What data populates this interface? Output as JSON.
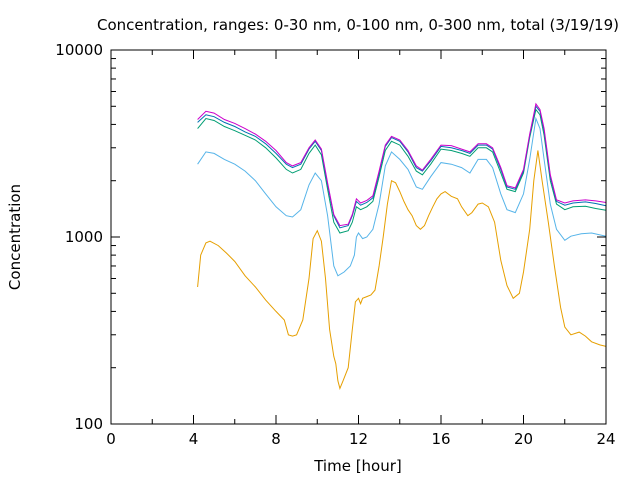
{
  "chart_data": {
    "type": "line",
    "title": "Concentration, ranges: 0-30 nm, 0-100 nm, 0-300 nm, total (3/19/19)",
    "xlabel": "Time [hour]",
    "ylabel": "Concentration",
    "xlim": [
      0,
      24
    ],
    "ylim": [
      100,
      10000
    ],
    "yscale": "log",
    "grid": false,
    "x_ticks": [
      "0",
      "4",
      "8",
      "12",
      "16",
      "20",
      "24"
    ],
    "y_ticks": [
      "100",
      "1000",
      "10000"
    ],
    "series": [
      {
        "color": "#e69f00",
        "points": [
          [
            4.2,
            540
          ],
          [
            4.35,
            800
          ],
          [
            4.6,
            930
          ],
          [
            4.8,
            950
          ],
          [
            5.2,
            900
          ],
          [
            5.6,
            820
          ],
          [
            6.0,
            740
          ],
          [
            6.5,
            620
          ],
          [
            7.0,
            540
          ],
          [
            7.5,
            460
          ],
          [
            8.0,
            400
          ],
          [
            8.4,
            360
          ],
          [
            8.6,
            300
          ],
          [
            8.8,
            295
          ],
          [
            9.0,
            300
          ],
          [
            9.3,
            360
          ],
          [
            9.6,
            600
          ],
          [
            9.8,
            980
          ],
          [
            10.0,
            1080
          ],
          [
            10.2,
            950
          ],
          [
            10.4,
            600
          ],
          [
            10.6,
            320
          ],
          [
            10.8,
            230
          ],
          [
            10.9,
            210
          ],
          [
            11.0,
            170
          ],
          [
            11.1,
            155
          ],
          [
            11.25,
            170
          ],
          [
            11.5,
            200
          ],
          [
            11.7,
            320
          ],
          [
            11.85,
            450
          ],
          [
            12.0,
            470
          ],
          [
            12.1,
            440
          ],
          [
            12.2,
            470
          ],
          [
            12.4,
            480
          ],
          [
            12.6,
            490
          ],
          [
            12.8,
            520
          ],
          [
            13.0,
            700
          ],
          [
            13.2,
            1000
          ],
          [
            13.4,
            1500
          ],
          [
            13.6,
            2000
          ],
          [
            13.8,
            1950
          ],
          [
            14.0,
            1750
          ],
          [
            14.2,
            1550
          ],
          [
            14.4,
            1400
          ],
          [
            14.6,
            1300
          ],
          [
            14.8,
            1150
          ],
          [
            15.0,
            1100
          ],
          [
            15.2,
            1150
          ],
          [
            15.4,
            1300
          ],
          [
            15.6,
            1450
          ],
          [
            15.8,
            1600
          ],
          [
            16.0,
            1700
          ],
          [
            16.2,
            1750
          ],
          [
            16.5,
            1650
          ],
          [
            16.8,
            1600
          ],
          [
            17.0,
            1450
          ],
          [
            17.3,
            1300
          ],
          [
            17.5,
            1350
          ],
          [
            17.8,
            1500
          ],
          [
            18.0,
            1520
          ],
          [
            18.3,
            1450
          ],
          [
            18.6,
            1200
          ],
          [
            18.9,
            750
          ],
          [
            19.2,
            550
          ],
          [
            19.5,
            470
          ],
          [
            19.8,
            500
          ],
          [
            20.0,
            650
          ],
          [
            20.3,
            1100
          ],
          [
            20.5,
            2000
          ],
          [
            20.7,
            2900
          ],
          [
            20.9,
            2000
          ],
          [
            21.2,
            1200
          ],
          [
            21.5,
            700
          ],
          [
            21.8,
            420
          ],
          [
            22.0,
            330
          ],
          [
            22.3,
            300
          ],
          [
            22.7,
            310
          ],
          [
            23.0,
            295
          ],
          [
            23.3,
            275
          ],
          [
            23.7,
            265
          ],
          [
            24.0,
            260
          ]
        ]
      },
      {
        "color": "#56b4e9",
        "points": [
          [
            4.2,
            2450
          ],
          [
            4.6,
            2850
          ],
          [
            5.0,
            2800
          ],
          [
            5.5,
            2600
          ],
          [
            6.0,
            2450
          ],
          [
            6.5,
            2250
          ],
          [
            7.0,
            2000
          ],
          [
            7.5,
            1700
          ],
          [
            8.0,
            1450
          ],
          [
            8.5,
            1300
          ],
          [
            8.8,
            1280
          ],
          [
            9.2,
            1400
          ],
          [
            9.6,
            1900
          ],
          [
            9.9,
            2200
          ],
          [
            10.2,
            2000
          ],
          [
            10.5,
            1300
          ],
          [
            10.8,
            700
          ],
          [
            11.0,
            620
          ],
          [
            11.3,
            650
          ],
          [
            11.6,
            700
          ],
          [
            11.8,
            800
          ],
          [
            11.9,
            1000
          ],
          [
            12.0,
            1050
          ],
          [
            12.2,
            980
          ],
          [
            12.4,
            1000
          ],
          [
            12.7,
            1100
          ],
          [
            13.0,
            1500
          ],
          [
            13.3,
            2400
          ],
          [
            13.6,
            2850
          ],
          [
            14.0,
            2600
          ],
          [
            14.4,
            2300
          ],
          [
            14.8,
            1850
          ],
          [
            15.1,
            1800
          ],
          [
            15.5,
            2100
          ],
          [
            16.0,
            2500
          ],
          [
            16.5,
            2450
          ],
          [
            17.0,
            2350
          ],
          [
            17.4,
            2200
          ],
          [
            17.8,
            2600
          ],
          [
            18.2,
            2600
          ],
          [
            18.5,
            2350
          ],
          [
            18.9,
            1700
          ],
          [
            19.2,
            1400
          ],
          [
            19.6,
            1350
          ],
          [
            20.0,
            1700
          ],
          [
            20.3,
            2600
          ],
          [
            20.6,
            4300
          ],
          [
            20.8,
            3800
          ],
          [
            21.0,
            2600
          ],
          [
            21.3,
            1500
          ],
          [
            21.6,
            1100
          ],
          [
            22.0,
            960
          ],
          [
            22.3,
            1010
          ],
          [
            22.8,
            1040
          ],
          [
            23.3,
            1050
          ],
          [
            24.0,
            1010
          ]
        ]
      },
      {
        "color": "#009e73",
        "points": [
          [
            4.2,
            3800
          ],
          [
            4.6,
            4300
          ],
          [
            5.0,
            4200
          ],
          [
            5.5,
            3900
          ],
          [
            6.0,
            3700
          ],
          [
            6.5,
            3500
          ],
          [
            7.0,
            3300
          ],
          [
            7.5,
            3000
          ],
          [
            8.0,
            2650
          ],
          [
            8.5,
            2300
          ],
          [
            8.8,
            2200
          ],
          [
            9.2,
            2300
          ],
          [
            9.6,
            2800
          ],
          [
            9.9,
            3100
          ],
          [
            10.2,
            2750
          ],
          [
            10.5,
            1800
          ],
          [
            10.8,
            1200
          ],
          [
            11.1,
            1050
          ],
          [
            11.5,
            1080
          ],
          [
            11.7,
            1200
          ],
          [
            11.9,
            1450
          ],
          [
            12.1,
            1400
          ],
          [
            12.4,
            1450
          ],
          [
            12.7,
            1550
          ],
          [
            13.0,
            2100
          ],
          [
            13.3,
            2900
          ],
          [
            13.6,
            3250
          ],
          [
            14.0,
            3100
          ],
          [
            14.4,
            2700
          ],
          [
            14.8,
            2250
          ],
          [
            15.1,
            2150
          ],
          [
            15.5,
            2450
          ],
          [
            16.0,
            2950
          ],
          [
            16.5,
            2900
          ],
          [
            17.0,
            2800
          ],
          [
            17.4,
            2700
          ],
          [
            17.8,
            3000
          ],
          [
            18.2,
            3000
          ],
          [
            18.5,
            2850
          ],
          [
            18.9,
            2200
          ],
          [
            19.2,
            1800
          ],
          [
            19.6,
            1750
          ],
          [
            20.0,
            2200
          ],
          [
            20.3,
            3400
          ],
          [
            20.6,
            4800
          ],
          [
            20.8,
            4500
          ],
          [
            21.0,
            3500
          ],
          [
            21.3,
            2000
          ],
          [
            21.6,
            1500
          ],
          [
            22.0,
            1400
          ],
          [
            22.4,
            1450
          ],
          [
            23.0,
            1460
          ],
          [
            23.5,
            1420
          ],
          [
            24.0,
            1390
          ]
        ]
      },
      {
        "color": "#0072b2",
        "points": [
          [
            4.2,
            4100
          ],
          [
            4.6,
            4500
          ],
          [
            5.0,
            4400
          ],
          [
            5.5,
            4100
          ],
          [
            6.0,
            3900
          ],
          [
            6.5,
            3650
          ],
          [
            7.0,
            3450
          ],
          [
            7.5,
            3150
          ],
          [
            8.0,
            2800
          ],
          [
            8.5,
            2450
          ],
          [
            8.8,
            2350
          ],
          [
            9.2,
            2450
          ],
          [
            9.6,
            2950
          ],
          [
            9.9,
            3250
          ],
          [
            10.2,
            2900
          ],
          [
            10.5,
            1900
          ],
          [
            10.8,
            1300
          ],
          [
            11.1,
            1120
          ],
          [
            11.5,
            1150
          ],
          [
            11.7,
            1300
          ],
          [
            11.9,
            1550
          ],
          [
            12.1,
            1480
          ],
          [
            12.4,
            1530
          ],
          [
            12.7,
            1620
          ],
          [
            13.0,
            2200
          ],
          [
            13.3,
            3050
          ],
          [
            13.6,
            3400
          ],
          [
            14.0,
            3250
          ],
          [
            14.4,
            2850
          ],
          [
            14.8,
            2350
          ],
          [
            15.1,
            2250
          ],
          [
            15.5,
            2550
          ],
          [
            16.0,
            3050
          ],
          [
            16.5,
            3000
          ],
          [
            17.0,
            2900
          ],
          [
            17.4,
            2800
          ],
          [
            17.8,
            3100
          ],
          [
            18.2,
            3100
          ],
          [
            18.5,
            2950
          ],
          [
            18.9,
            2300
          ],
          [
            19.2,
            1850
          ],
          [
            19.6,
            1800
          ],
          [
            20.0,
            2250
          ],
          [
            20.3,
            3500
          ],
          [
            20.6,
            5000
          ],
          [
            20.8,
            4700
          ],
          [
            21.0,
            3700
          ],
          [
            21.3,
            2100
          ],
          [
            21.6,
            1550
          ],
          [
            22.0,
            1480
          ],
          [
            22.4,
            1520
          ],
          [
            23.0,
            1540
          ],
          [
            23.5,
            1510
          ],
          [
            24.0,
            1470
          ]
        ]
      },
      {
        "color": "#cc00cc",
        "points": [
          [
            4.2,
            4250
          ],
          [
            4.6,
            4700
          ],
          [
            5.0,
            4600
          ],
          [
            5.5,
            4250
          ],
          [
            6.0,
            4050
          ],
          [
            6.5,
            3800
          ],
          [
            7.0,
            3550
          ],
          [
            7.5,
            3250
          ],
          [
            8.0,
            2900
          ],
          [
            8.5,
            2500
          ],
          [
            8.8,
            2400
          ],
          [
            9.2,
            2500
          ],
          [
            9.6,
            3000
          ],
          [
            9.9,
            3300
          ],
          [
            10.2,
            2950
          ],
          [
            10.5,
            1950
          ],
          [
            10.8,
            1320
          ],
          [
            11.1,
            1150
          ],
          [
            11.5,
            1170
          ],
          [
            11.7,
            1320
          ],
          [
            11.9,
            1600
          ],
          [
            12.1,
            1520
          ],
          [
            12.4,
            1570
          ],
          [
            12.7,
            1660
          ],
          [
            13.0,
            2250
          ],
          [
            13.3,
            3100
          ],
          [
            13.6,
            3450
          ],
          [
            14.0,
            3300
          ],
          [
            14.4,
            2900
          ],
          [
            14.8,
            2400
          ],
          [
            15.1,
            2280
          ],
          [
            15.5,
            2600
          ],
          [
            16.0,
            3100
          ],
          [
            16.5,
            3080
          ],
          [
            17.0,
            2950
          ],
          [
            17.4,
            2850
          ],
          [
            17.8,
            3150
          ],
          [
            18.2,
            3150
          ],
          [
            18.5,
            3000
          ],
          [
            18.9,
            2350
          ],
          [
            19.2,
            1880
          ],
          [
            19.6,
            1830
          ],
          [
            20.0,
            2300
          ],
          [
            20.3,
            3550
          ],
          [
            20.6,
            5150
          ],
          [
            20.8,
            4800
          ],
          [
            21.0,
            3800
          ],
          [
            21.3,
            2150
          ],
          [
            21.6,
            1580
          ],
          [
            22.0,
            1520
          ],
          [
            22.4,
            1560
          ],
          [
            23.0,
            1580
          ],
          [
            23.5,
            1560
          ],
          [
            24.0,
            1530
          ]
        ]
      }
    ]
  }
}
